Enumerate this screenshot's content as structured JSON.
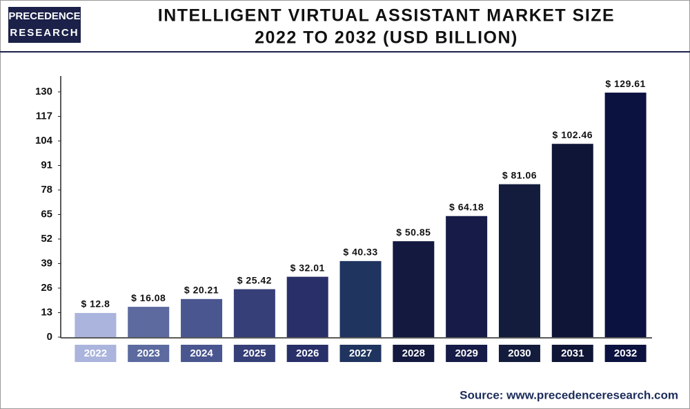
{
  "logo": [
    "PRECEDENCE",
    "RESEARCH"
  ],
  "source": "Source: www.precedenceresearch.com",
  "chart_data": {
    "type": "bar",
    "title": [
      "INTELLIGENT VIRTUAL ASSISTANT MARKET SIZE",
      "2022 TO 2032 (USD BILLION)"
    ],
    "categories": [
      "2022",
      "2023",
      "2024",
      "2025",
      "2026",
      "2027",
      "2028",
      "2029",
      "2030",
      "2031",
      "2032"
    ],
    "values": [
      12.8,
      16.08,
      20.21,
      25.42,
      32.01,
      40.33,
      50.85,
      64.18,
      81.06,
      102.46,
      129.61
    ],
    "value_labels": [
      "$ 12.8",
      "$ 16.08",
      "$ 20.21",
      "$ 25.42",
      "$ 32.01",
      "$ 40.33",
      "$ 50.85",
      "$ 64.18",
      "$ 81.06",
      "$ 102.46",
      "$ 129.61"
    ],
    "colors": [
      "#aab4dc",
      "#5c6a9f",
      "#4a568f",
      "#363f77",
      "#282f69",
      "#1f345f",
      "#13193f",
      "#161c47",
      "#141c3d",
      "#0f1536",
      "#0b1240"
    ],
    "ylim": [
      0,
      130
    ],
    "yticks": [
      0,
      13,
      26,
      39,
      52,
      65,
      78,
      91,
      104,
      117,
      130
    ],
    "grid": false
  }
}
